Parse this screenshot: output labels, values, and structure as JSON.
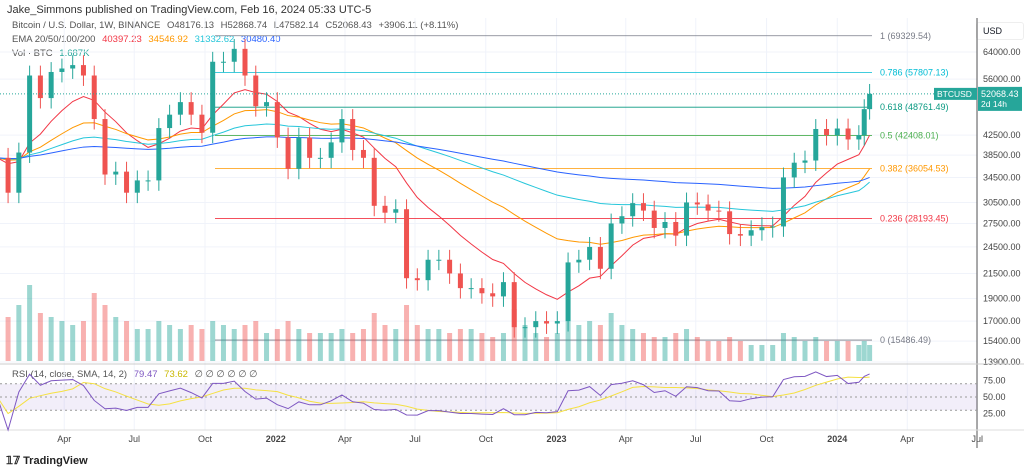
{
  "header": {
    "published": "Jake_Simmons published on TradingView.com, Feb 16, 2024 05:33 UTC-5"
  },
  "legend": {
    "symbol": "Bitcoin / U.S. Dollar, 1W, BINANCE",
    "o": "O48176.13",
    "h": "H52868.74",
    "l": "L47582.14",
    "c": "C52068.43",
    "change": "+3906.11 (+8.11%)",
    "ema_label": "EMA 20/50/100/200",
    "ema20": "40397.23",
    "ema50": "34546.92",
    "ema100": "31332.62",
    "ema200": "30480.40",
    "vol_label": "Vol · BTC",
    "vol": "1.687K",
    "rsi_label": "RSI (14, close, SMA, 14, 2)",
    "rsi": "79.47",
    "rsi_sma": "73.62",
    "rsi_extra": "∅ ∅ ∅ ∅ ∅ ∅"
  },
  "colors": {
    "up": "#26a69a",
    "down": "#ef5350",
    "ema20": "#f23645",
    "ema50": "#ff9800",
    "ema100": "#26c6da",
    "ema200": "#2962ff",
    "rsi": "#7e57c2",
    "rsi_sma": "#f5e142"
  },
  "price_axis": {
    "unit": "USD",
    "ticks": [
      "64000.00",
      "56000.00",
      "42500.00",
      "38500.00",
      "34500.00",
      "30500.00",
      "27500.00",
      "24500.00",
      "21500.00",
      "19000.00",
      "17000.00",
      "15400.00",
      "13900.00"
    ],
    "rsi_ticks": [
      "75.00",
      "50.00",
      "25.00"
    ]
  },
  "last_price": {
    "symbol": "BTCUSD",
    "value": "52068.43",
    "countdown": "2d 14h"
  },
  "time_axis": [
    "Apr",
    "Jul",
    "Oct",
    "2022",
    "Apr",
    "Jul",
    "Oct",
    "2023",
    "Apr",
    "Jul",
    "Oct",
    "2024",
    "Apr",
    "Jul"
  ],
  "fib_levels": [
    {
      "label": "1 (69329.54)",
      "price": 69329.54,
      "color": "#787b86"
    },
    {
      "label": "0.786 (57807.13)",
      "price": 57807.13,
      "color": "#00bcd4"
    },
    {
      "label": "0.618 (48761.49)",
      "price": 48761.49,
      "color": "#089981"
    },
    {
      "label": "0.5 (42408.01)",
      "price": 42408.01,
      "color": "#4caf50"
    },
    {
      "label": "0.382 (36054.53)",
      "price": 36054.53,
      "color": "#ff9800"
    },
    {
      "label": "0.236 (28193.45)",
      "price": 28193.45,
      "color": "#f23645"
    },
    {
      "label": "0 (15486.49)",
      "price": 15486.49,
      "color": "#787b86"
    }
  ],
  "chart_data": {
    "type": "candlestick",
    "scale": "log",
    "ylim": [
      13900,
      70000
    ],
    "xlim": [
      "2021-01-01",
      "2024-07-01"
    ],
    "interval": "biweekly approx",
    "dates": [
      "2021-01-04",
      "2021-01-18",
      "2021-02-01",
      "2021-02-15",
      "2021-03-01",
      "2021-03-15",
      "2021-03-29",
      "2021-04-12",
      "2021-04-26",
      "2021-05-10",
      "2021-05-24",
      "2021-06-07",
      "2021-06-21",
      "2021-07-05",
      "2021-07-19",
      "2021-08-02",
      "2021-08-16",
      "2021-08-30",
      "2021-09-13",
      "2021-09-27",
      "2021-10-11",
      "2021-10-25",
      "2021-11-08",
      "2021-11-22",
      "2021-12-06",
      "2021-12-20",
      "2022-01-03",
      "2022-01-17",
      "2022-01-31",
      "2022-02-14",
      "2022-02-28",
      "2022-03-14",
      "2022-03-28",
      "2022-04-11",
      "2022-04-25",
      "2022-05-09",
      "2022-05-23",
      "2022-06-06",
      "2022-06-20",
      "2022-07-04",
      "2022-07-18",
      "2022-08-01",
      "2022-08-15",
      "2022-08-29",
      "2022-09-12",
      "2022-09-26",
      "2022-10-10",
      "2022-10-24",
      "2022-11-07",
      "2022-11-21",
      "2022-12-05",
      "2022-12-19",
      "2023-01-02",
      "2023-01-16",
      "2023-01-30",
      "2023-02-13",
      "2023-02-27",
      "2023-03-13",
      "2023-03-27",
      "2023-04-10",
      "2023-04-24",
      "2023-05-08",
      "2023-05-22",
      "2023-06-05",
      "2023-06-19",
      "2023-07-03",
      "2023-07-17",
      "2023-07-31",
      "2023-08-14",
      "2023-08-28",
      "2023-09-11",
      "2023-09-25",
      "2023-10-09",
      "2023-10-23",
      "2023-11-06",
      "2023-11-20",
      "2023-12-04",
      "2023-12-18",
      "2024-01-01",
      "2024-01-15",
      "2024-01-29",
      "2024-02-05",
      "2024-02-12"
    ],
    "close": [
      38000,
      32000,
      39000,
      57000,
      51000,
      58000,
      59000,
      60000,
      57000,
      46000,
      35000,
      35500,
      32000,
      34000,
      34000,
      44000,
      47000,
      50000,
      47000,
      43000,
      61000,
      61000,
      65000,
      57000,
      49000,
      50000,
      42000,
      36000,
      42000,
      38000,
      38000,
      41000,
      46000,
      39500,
      38000,
      30000,
      29000,
      29500,
      21000,
      20800,
      23000,
      23000,
      21500,
      20000,
      20000,
      19500,
      19200,
      20600,
      16500,
      16500,
      17000,
      16800,
      17000,
      22700,
      23000,
      24500,
      22000,
      27500,
      28500,
      30400,
      29300,
      26900,
      27700,
      25900,
      30500,
      30200,
      29300,
      29200,
      26100,
      25900,
      26600,
      27000,
      27100,
      34500,
      37100,
      37500,
      43800,
      42500,
      43900,
      41600,
      42500,
      48300,
      52068.43
    ],
    "volume_relative": [
      60,
      55,
      70,
      95,
      60,
      55,
      50,
      45,
      50,
      85,
      70,
      55,
      50,
      40,
      40,
      50,
      45,
      40,
      45,
      40,
      50,
      45,
      40,
      45,
      50,
      35,
      40,
      50,
      40,
      35,
      35,
      35,
      40,
      35,
      40,
      60,
      45,
      40,
      70,
      45,
      40,
      40,
      35,
      40,
      40,
      35,
      30,
      35,
      65,
      45,
      35,
      30,
      35,
      50,
      45,
      50,
      45,
      60,
      45,
      40,
      35,
      30,
      30,
      35,
      40,
      30,
      25,
      25,
      30,
      25,
      20,
      20,
      20,
      35,
      30,
      25,
      30,
      25,
      25,
      25,
      20,
      25,
      20
    ]
  }
}
